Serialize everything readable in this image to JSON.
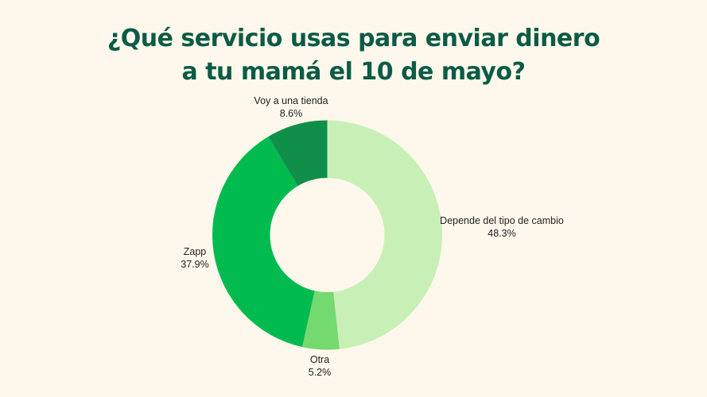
{
  "chart_data": {
    "type": "pie",
    "donut": true,
    "title_lines": [
      "¿Qué servicio usas para enviar dinero",
      "a tu mamá el 10 de mayo?"
    ],
    "slices": [
      {
        "label": "Depende del tipo de cambio",
        "value": 48.3,
        "display": "48.3%",
        "color": "#c8f0b6"
      },
      {
        "label": "Otra",
        "value": 5.2,
        "display": "5.2%",
        "color": "#74d96f"
      },
      {
        "label": "Zapp",
        "value": 37.9,
        "display": "37.9%",
        "color": "#02bb4f"
      },
      {
        "label": "Voy a una tienda",
        "value": 8.6,
        "display": "8.6%",
        "color": "#0f8f4a"
      }
    ],
    "start": "top",
    "direction": "clockwise",
    "title_color": "#0c5b45",
    "background": "#fef8ec"
  }
}
